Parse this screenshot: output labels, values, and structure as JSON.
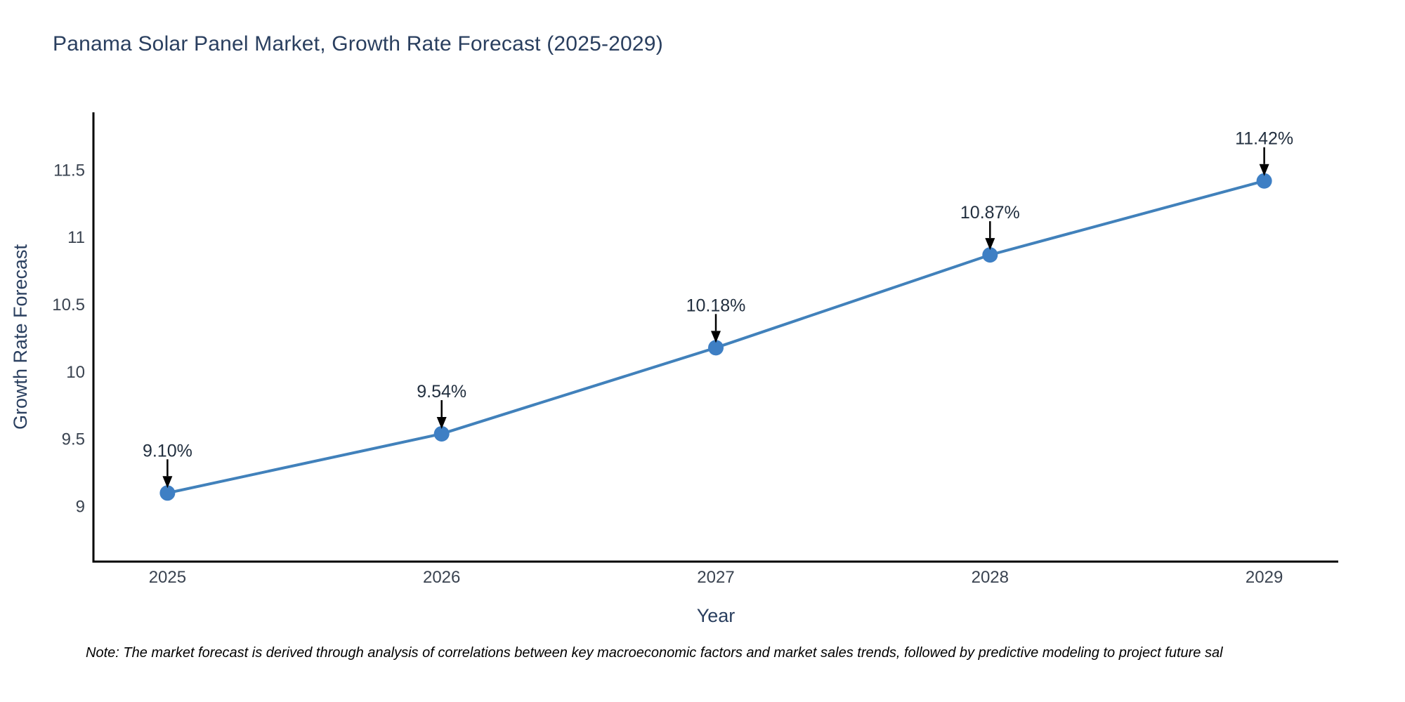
{
  "note": "Note: The market forecast is derived through analysis of correlations between key macroeconomic factors and market sales trends, followed by predictive modeling to project future sal",
  "chart_data": {
    "type": "line",
    "title": "Panama Solar Panel Market, Growth Rate Forecast (2025-2029)",
    "xlabel": "Year",
    "ylabel": "Growth Rate Forecast",
    "x": [
      2025,
      2026,
      2027,
      2028,
      2029
    ],
    "y": [
      9.1,
      9.54,
      10.18,
      10.87,
      11.42
    ],
    "point_labels": [
      "9.10%",
      "9.54%",
      "10.18%",
      "10.87%",
      "11.42%"
    ],
    "yticks": [
      9,
      9.5,
      10,
      10.5,
      11,
      11.5
    ],
    "xlim": [
      2024.73,
      2029.27
    ],
    "ylim": [
      8.59,
      11.93
    ],
    "grid": false,
    "legend_position": "none",
    "marker_style": "circle",
    "annotation_style": "arrow-down",
    "colors": {
      "line": "#4181bb",
      "marker": "#3e7fc4",
      "axis": "#000000",
      "title_text": "#2a3f5f",
      "tick_text": "#3a4350",
      "annotation_text": "#222f3f",
      "arrow": "#000000",
      "note_text": "#000000"
    }
  }
}
